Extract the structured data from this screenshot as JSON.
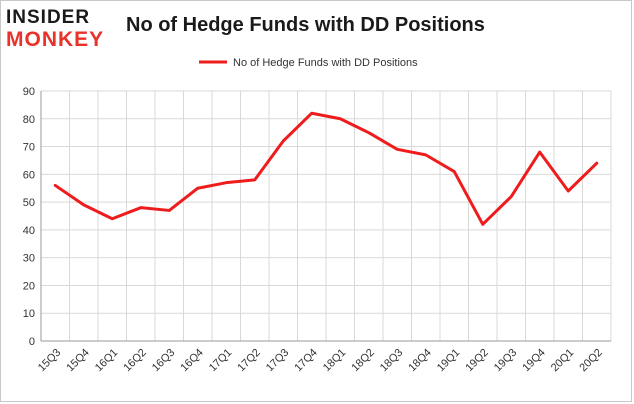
{
  "logo": {
    "line1": "INSIDER",
    "line2": "MONKEY"
  },
  "chart_data": {
    "type": "line",
    "title": "No of Hedge Funds with DD Positions",
    "xlabel": "",
    "ylabel": "",
    "ylim": [
      0,
      90
    ],
    "yticks": [
      0,
      10,
      20,
      30,
      40,
      50,
      60,
      70,
      80,
      90
    ],
    "grid": true,
    "legend_placement": "top-center",
    "categories": [
      "15Q3",
      "15Q4",
      "16Q1",
      "16Q2",
      "16Q3",
      "16Q4",
      "17Q1",
      "17Q2",
      "17Q3",
      "17Q4",
      "18Q1",
      "18Q2",
      "18Q3",
      "18Q4",
      "19Q1",
      "19Q2",
      "19Q3",
      "19Q4",
      "20Q1",
      "20Q2"
    ],
    "series": [
      {
        "name": "No of Hedge Funds with DD Positions",
        "color": "#ee1c1c",
        "values": [
          56,
          49,
          44,
          48,
          47,
          55,
          57,
          58,
          72,
          82,
          80,
          75,
          69,
          67,
          61,
          42,
          52,
          68,
          54,
          64
        ]
      }
    ]
  }
}
